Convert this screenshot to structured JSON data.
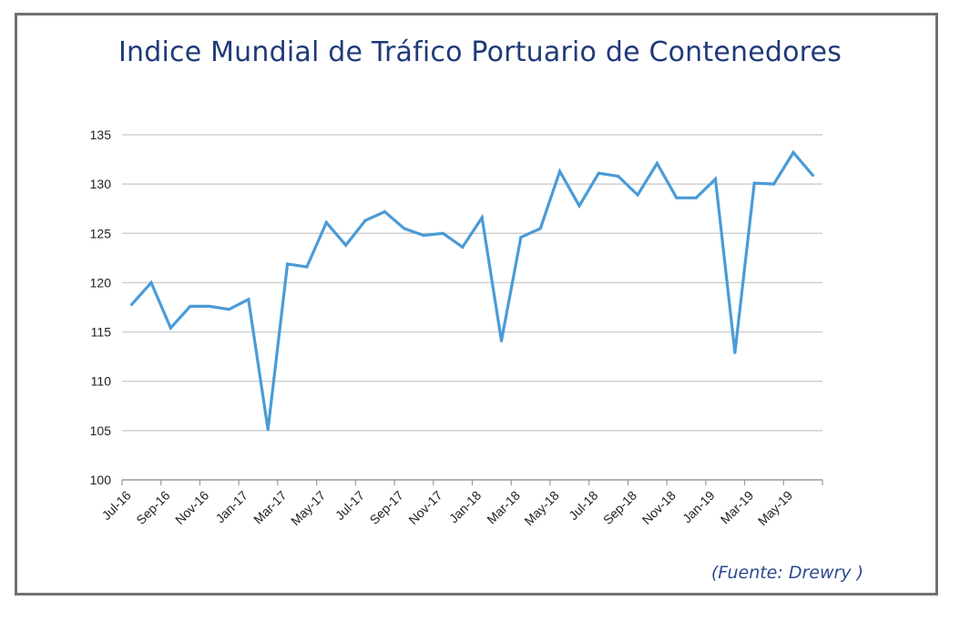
{
  "header": {
    "title": "Indice Mundial de Tráfico Portuario de Contenedores"
  },
  "footer": {
    "source": "(Fuente: Drewry )"
  },
  "chart_data": {
    "type": "line",
    "x": [
      "Jul-16",
      "Aug-16",
      "Sep-16",
      "Oct-16",
      "Nov-16",
      "Dec-16",
      "Jan-17",
      "Feb-17",
      "Mar-17",
      "Apr-17",
      "May-17",
      "Jun-17",
      "Jul-17",
      "Aug-17",
      "Sep-17",
      "Oct-17",
      "Nov-17",
      "Dec-17",
      "Jan-18",
      "Feb-18",
      "Mar-18",
      "Apr-18",
      "May-18",
      "Jun-18",
      "Jul-18",
      "Aug-18",
      "Sep-18",
      "Oct-18",
      "Nov-18",
      "Dec-18",
      "Jan-19",
      "Feb-19",
      "Mar-19",
      "Apr-19",
      "May-19",
      "Jun-19"
    ],
    "x_tick_labels": [
      "Jul-16",
      "Sep-16",
      "Nov-16",
      "Jan-17",
      "Mar-17",
      "May-17",
      "Jul-17",
      "Sep-17",
      "Nov-17",
      "Jan-18",
      "Mar-18",
      "May-18",
      "Jul-18",
      "Sep-18",
      "Nov-18",
      "Jan-19",
      "Mar-19",
      "May-19"
    ],
    "series": [
      {
        "values": [
          117.8,
          120.0,
          115.4,
          117.6,
          117.6,
          117.3,
          118.3,
          105.1,
          121.9,
          121.6,
          126.1,
          123.8,
          126.3,
          127.2,
          125.5,
          124.8,
          125.0,
          123.6,
          126.6,
          114.1,
          124.6,
          125.5,
          131.3,
          127.8,
          131.1,
          130.8,
          128.9,
          132.1,
          128.6,
          128.6,
          130.5,
          112.9,
          130.1,
          130.0,
          133.2,
          130.9
        ]
      }
    ],
    "ylim": [
      100,
      135
    ],
    "y_ticks": [
      100,
      105,
      110,
      115,
      120,
      125,
      130,
      135
    ],
    "grid": true,
    "line_color": "#4a9bd8"
  }
}
